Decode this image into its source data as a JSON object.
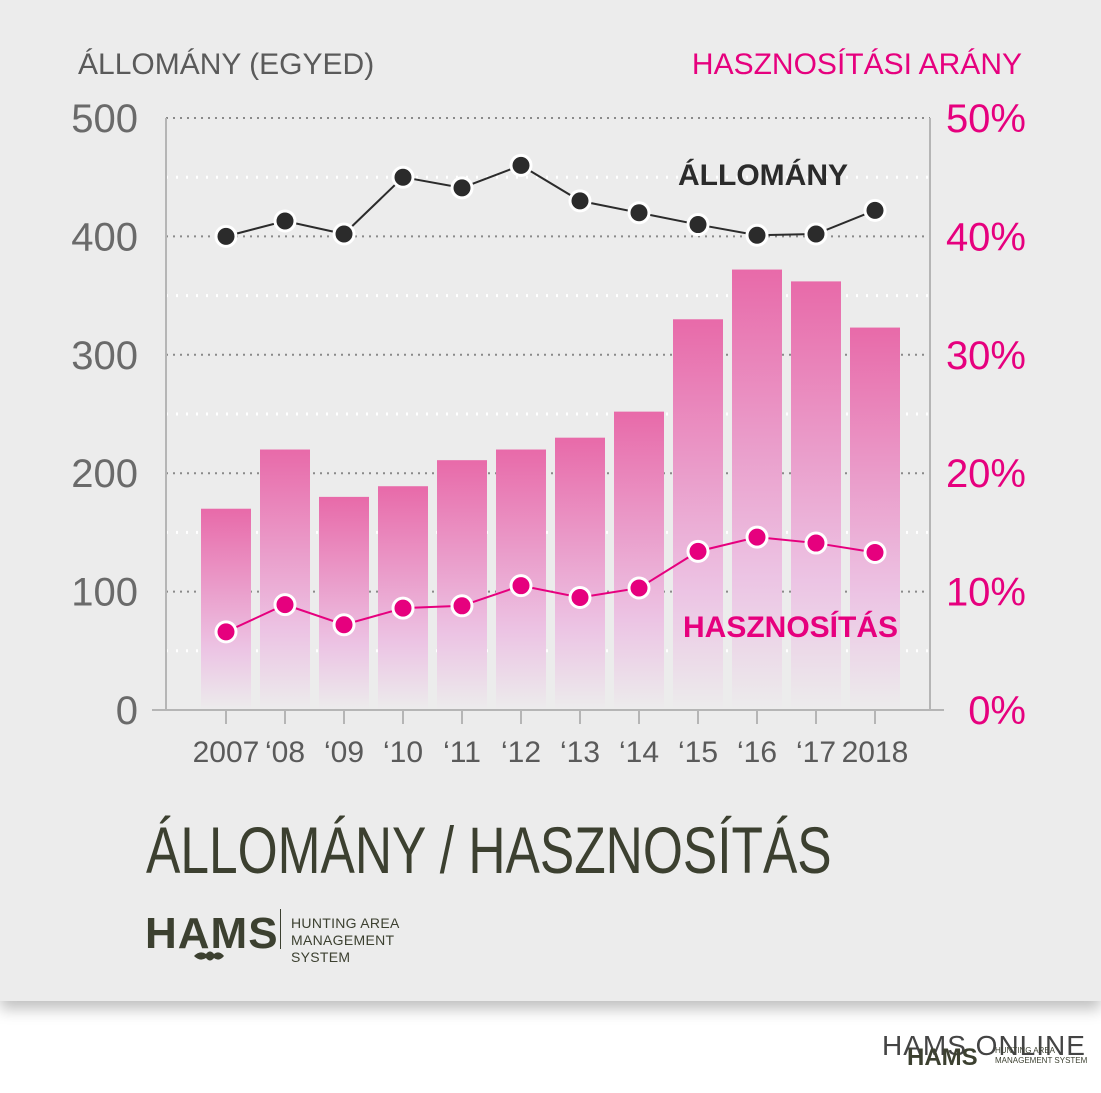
{
  "chart_data": {
    "type": "bar",
    "categories": [
      "2007",
      "‘08",
      "‘09",
      "‘10",
      "‘11",
      "‘12",
      "‘13",
      "‘14",
      "‘15",
      "‘16",
      "‘17",
      "2018"
    ],
    "left_axis_label": "ÁLLOMÁNY (EGYED)",
    "right_axis_label": "HASZNOSÍTÁSI ARÁNY",
    "ylim": [
      0,
      500
    ],
    "y2lim": [
      0,
      50
    ],
    "y_ticks": [
      "0",
      "100",
      "200",
      "300",
      "400",
      "500"
    ],
    "y2_ticks": [
      "0%",
      "10%",
      "20%",
      "30%",
      "40%",
      "50%"
    ],
    "series": [
      {
        "name": "HASZNOSÍTÁS",
        "kind": "bar",
        "axis": "left",
        "values": [
          170,
          220,
          180,
          189,
          211,
          220,
          230,
          252,
          330,
          372,
          362,
          323
        ]
      },
      {
        "name": "ÁLLOMÁNY",
        "kind": "line",
        "axis": "left",
        "values": [
          400,
          413,
          402,
          450,
          441,
          460,
          430,
          420,
          410,
          401,
          402,
          422
        ]
      },
      {
        "name": "HASZNOSÍTÁS",
        "kind": "line",
        "axis": "right",
        "values": [
          6.6,
          8.9,
          7.2,
          8.6,
          8.8,
          10.5,
          9.5,
          10.3,
          13.4,
          14.6,
          14.1,
          13.3
        ]
      }
    ],
    "grid": true,
    "colors": {
      "allomany": "#2b2b2b",
      "hasznositas": "#e6007e",
      "bar_top": "#e86aa9",
      "bar_bottom": "#ecd3ea",
      "axis_text": "#6a6a6a"
    }
  },
  "title": "ÁLLOMÁNY / HASZNOSÍTÁS",
  "logo": {
    "word": "HAMS",
    "line1": "HUNTING AREA",
    "line2": "MANAGEMENT SYSTEM"
  },
  "watermark": {
    "text": "HAMS ONLINE",
    "hams": "HAMS",
    "line1": "HUNTING AREA",
    "line2": "MANAGEMENT SYSTEM"
  }
}
